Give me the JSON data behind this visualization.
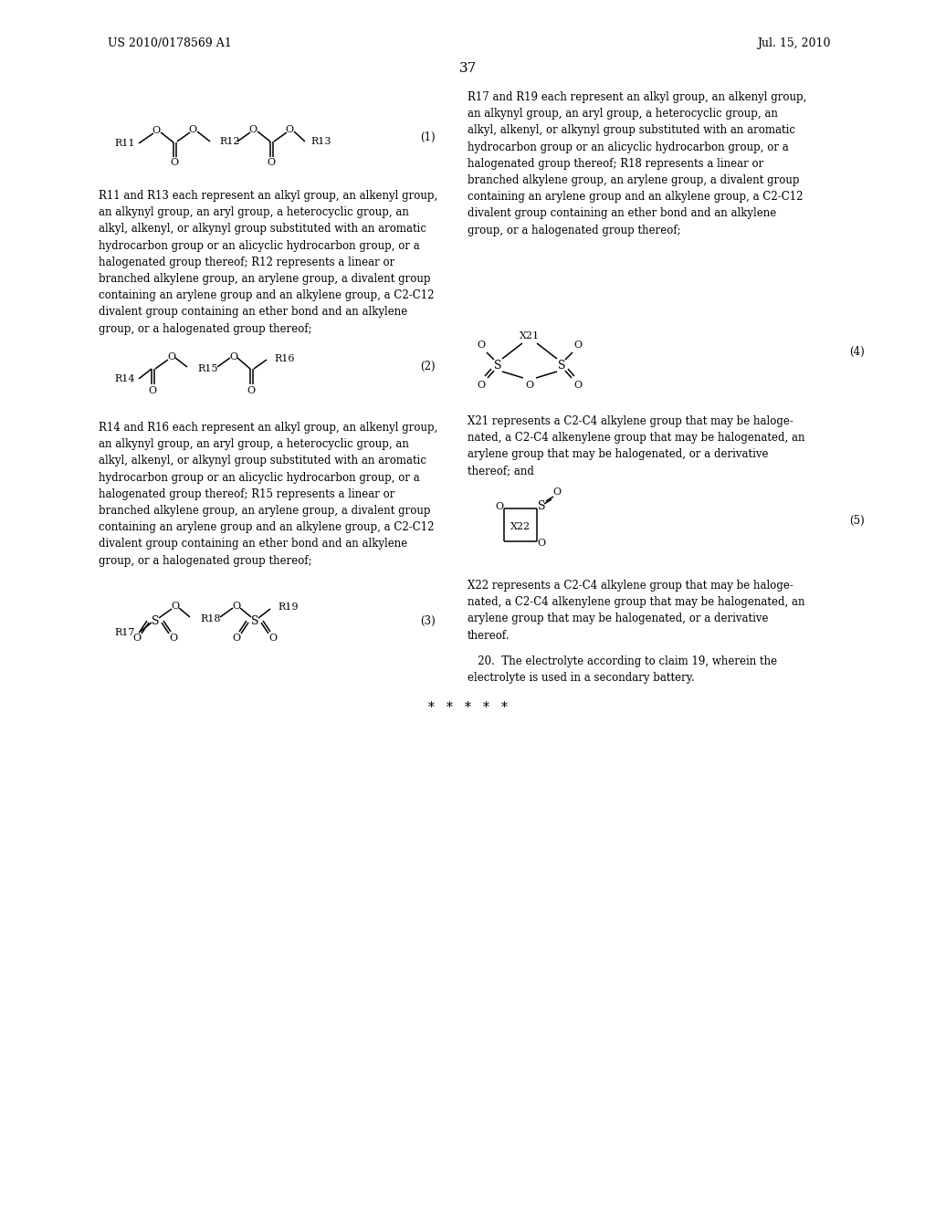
{
  "bg_color": "#ffffff",
  "header_left": "US 2010/0178569 A1",
  "header_right": "Jul. 15, 2010",
  "page_number": "37",
  "footer_stars": "*   *   *   *   *",
  "text_r11r13": "R11 and R13 each represent an alkyl group, an alkenyl group,\nan alkynyl group, an aryl group, a heterocyclic group, an\nalkyl, alkenyl, or alkynyl group substituted with an aromatic\nhydrocarbon group or an alicyclic hydrocarbon group, or a\nhalogenated group thereof; R12 represents a linear or\nbranched alkylene group, an arylene group, a divalent group\ncontaining an arylene group and an alkylene group, a C2-C12\ndivalent group containing an ether bond and an alkylene\ngroup, or a halogenated group thereof;",
  "text_r14r16": "R14 and R16 each represent an alkyl group, an alkenyl group,\nan alkynyl group, an aryl group, a heterocyclic group, an\nalkyl, alkenyl, or alkynyl group substituted with an aromatic\nhydrocarbon group or an alicyclic hydrocarbon group, or a\nhalogenated group thereof; R15 represents a linear or\nbranched alkylene group, an arylene group, a divalent group\ncontaining an arylene group and an alkylene group, a C2-C12\ndivalent group containing an ether bond and an alkylene\ngroup, or a halogenated group thereof;",
  "text_r17r19": "R17 and R19 each represent an alkyl group, an alkenyl group,\nan alkynyl group, an aryl group, a heterocyclic group, an\nalkyl, alkenyl, or alkynyl group substituted with an aromatic\nhydrocarbon group or an alicyclic hydrocarbon group, or a\nhalogenated group thereof; R18 represents a linear or\nbranched alkylene group, an arylene group, a divalent group\ncontaining an arylene group and an alkylene group, a C2-C12\ndivalent group containing an ether bond and an alkylene\ngroup, or a halogenated group thereof;",
  "text_x21": "X21 represents a C2-C4 alkylene group that may be haloge-\nnated, a C2-C4 alkenylene group that may be halogenated, an\narylene group that may be halogenated, or a derivative\nthereof; and",
  "text_x22": "X22 represents a C2-C4 alkylene group that may be haloge-\nnated, a C2-C4 alkenylene group that may be halogenated, an\narylene group that may be halogenated, or a derivative\nthereof.",
  "text_claim20": "   20.  The electrolyte according to claim 19, wherein the\nelectrolyte is used in a secondary battery.",
  "font_size_body": 8.5,
  "font_size_header": 9.0,
  "font_size_page": 11.0
}
